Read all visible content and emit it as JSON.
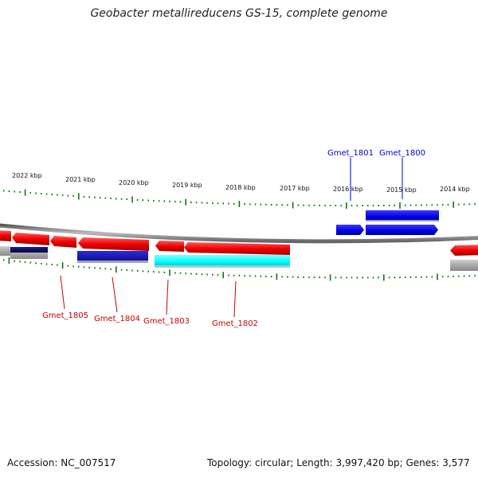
{
  "title": "Geobacter metallireducens GS-15, complete genome",
  "footer": {
    "accession": "Accession: NC_007517",
    "summary": "Topology: circular; Length: 3,997,420 bp; Genes: 3,577"
  },
  "colors": {
    "backbone": "#8a8a8a",
    "tick": "#0a7a0a",
    "forward_gene": "#0000e6",
    "reverse_gene": "#ff0000",
    "reverse_gene_dark": "#b00000",
    "cds_red": "#f20000",
    "cds_blue": "#1a1ad6",
    "cds_navy": "#0b0b6e",
    "cds_cyan": "#00ffff",
    "cds_gray": "#a8a8a8",
    "label_forward": "#0000cc",
    "label_reverse": "#cc0000"
  },
  "kbp_labels": [
    "2022 kbp",
    "2021 kbp",
    "2020 kbp",
    "2019 kbp",
    "2018 kbp",
    "2017 kbp",
    "2016 kbp",
    "2015 kbp",
    "2014 kbp"
  ],
  "gene_labels": [
    {
      "name": "Gmet_1801",
      "strand": "forward"
    },
    {
      "name": "Gmet_1800",
      "strand": "forward"
    },
    {
      "name": "Gmet_1805",
      "strand": "reverse"
    },
    {
      "name": "Gmet_1804",
      "strand": "reverse"
    },
    {
      "name": "Gmet_1803",
      "strand": "reverse"
    },
    {
      "name": "Gmet_1802",
      "strand": "reverse"
    }
  ]
}
